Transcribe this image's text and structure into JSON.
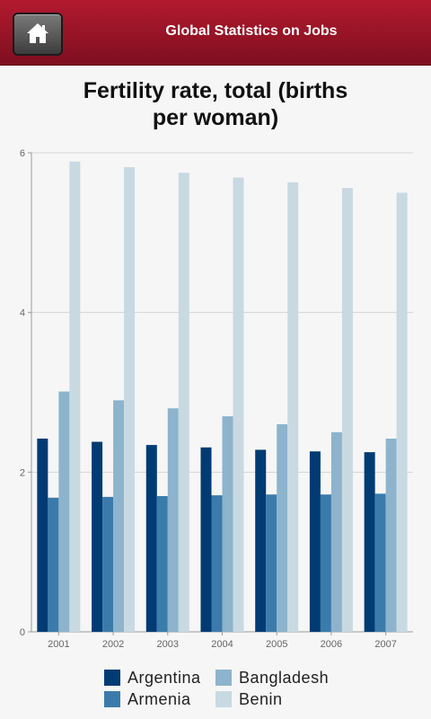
{
  "header": {
    "title": "Global Statistics on Jobs",
    "home_icon": "home-icon"
  },
  "chart_data": {
    "type": "bar",
    "title": "Fertility rate, total (births per woman)",
    "title_lines": [
      "Fertility rate, total (births",
      "per woman)"
    ],
    "categories": [
      "2001",
      "2002",
      "2003",
      "2004",
      "2005",
      "2006",
      "2007"
    ],
    "series": [
      {
        "name": "Argentina",
        "color": "#003b73",
        "values": [
          2.42,
          2.38,
          2.34,
          2.31,
          2.28,
          2.26,
          2.25
        ]
      },
      {
        "name": "Armenia",
        "color": "#3b7bab",
        "values": [
          1.68,
          1.69,
          1.7,
          1.71,
          1.72,
          1.72,
          1.73
        ]
      },
      {
        "name": "Bangladesh",
        "color": "#8db4cc",
        "values": [
          3.01,
          2.9,
          2.8,
          2.7,
          2.6,
          2.5,
          2.42
        ]
      },
      {
        "name": "Benin",
        "color": "#c9d9e2",
        "values": [
          5.89,
          5.82,
          5.75,
          5.69,
          5.63,
          5.56,
          5.5
        ]
      }
    ],
    "yticks": [
      "0",
      "2",
      "4",
      "6"
    ],
    "ylim": [
      0,
      6
    ],
    "grid": true,
    "legend_position": "bottom"
  }
}
